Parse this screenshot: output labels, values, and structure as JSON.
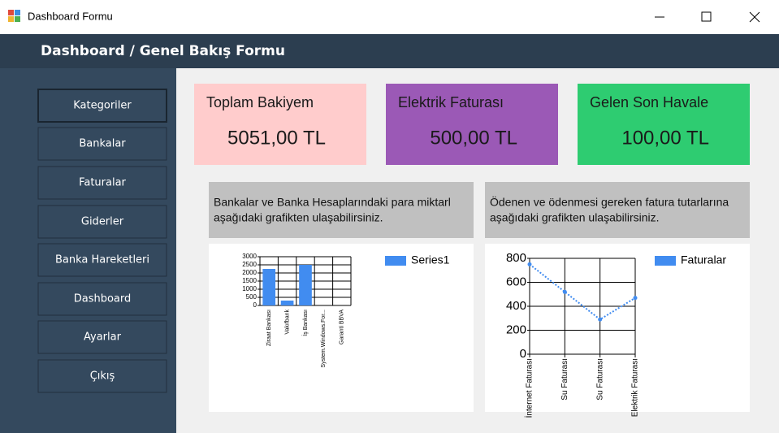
{
  "window": {
    "title": "Dashboard Formu"
  },
  "header": {
    "title": "Dashboard / Genel Bakış Formu"
  },
  "sidebar": {
    "buttons": [
      "Kategoriler",
      "Bankalar",
      "Faturalar",
      "Giderler",
      "Banka Hareketleri",
      "Dashboard",
      "Ayarlar",
      "Çıkış"
    ]
  },
  "cards": [
    {
      "title": "Toplam Bakiyem",
      "value": "5051,00 TL"
    },
    {
      "title": "Elektrik Faturası",
      "value": "500,00 TL"
    },
    {
      "title": "Gelen Son Havale",
      "value": "100,00 TL"
    }
  ],
  "panels": [
    {
      "caption": [
        "Bankalar ve Banka Hesaplarındaki para miktarl",
        "aşağıdaki grafikten ulaşabilirsiniz."
      ]
    },
    {
      "caption": [
        "Ödenen ve ödenmesi gereken fatura tutarlarına",
        "aşağıdaki grafikten ulaşabilirsiniz."
      ]
    }
  ],
  "chart_data": [
    {
      "type": "bar",
      "categories": [
        "Ziraat Bankası",
        "Vakıfbank",
        "İş Bankası",
        "System.Windows.For...",
        "Garanti BBVA"
      ],
      "series": [
        {
          "name": "Series1",
          "color": "#418cf0",
          "values": [
            2250,
            300,
            2500,
            0,
            0
          ]
        }
      ],
      "ylim": [
        0,
        3000
      ],
      "yticks": [
        0,
        500,
        1000,
        1500,
        2000,
        2500,
        3000
      ],
      "grid": true
    },
    {
      "type": "line",
      "categories": [
        "İnternet Faturası",
        "Su Faturası",
        "Su Faturası",
        "Elektrik Faturası"
      ],
      "series": [
        {
          "name": "Faturalar",
          "color": "#418cf0",
          "values": [
            750,
            520,
            290,
            470
          ]
        }
      ],
      "ylim": [
        0,
        800
      ],
      "yticks": [
        0,
        200,
        400,
        600,
        800
      ],
      "grid": true
    }
  ]
}
